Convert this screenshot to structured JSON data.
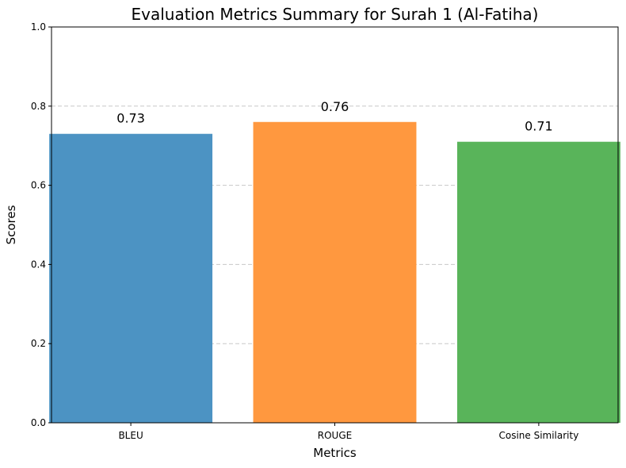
{
  "chart_data": {
    "type": "bar",
    "title": "Evaluation Metrics Summary for Surah 1 (Al-Fatiha)",
    "xlabel": "Metrics",
    "ylabel": "Scores",
    "categories": [
      "BLEU",
      "ROUGE",
      "Cosine Similarity"
    ],
    "values": [
      0.73,
      0.76,
      0.71
    ],
    "data_labels": [
      "0.73",
      "0.76",
      "0.71"
    ],
    "colors": [
      "#4c93c3",
      "#ff983f",
      "#59b45a"
    ],
    "ylim": [
      0,
      1
    ],
    "yticks": [
      0.0,
      0.2,
      0.4,
      0.6,
      0.8,
      1.0
    ],
    "ytick_labels": [
      "0.0",
      "0.2",
      "0.4",
      "0.6",
      "0.8",
      "1.0"
    ],
    "grid": "y-dashed",
    "legend": "none"
  }
}
